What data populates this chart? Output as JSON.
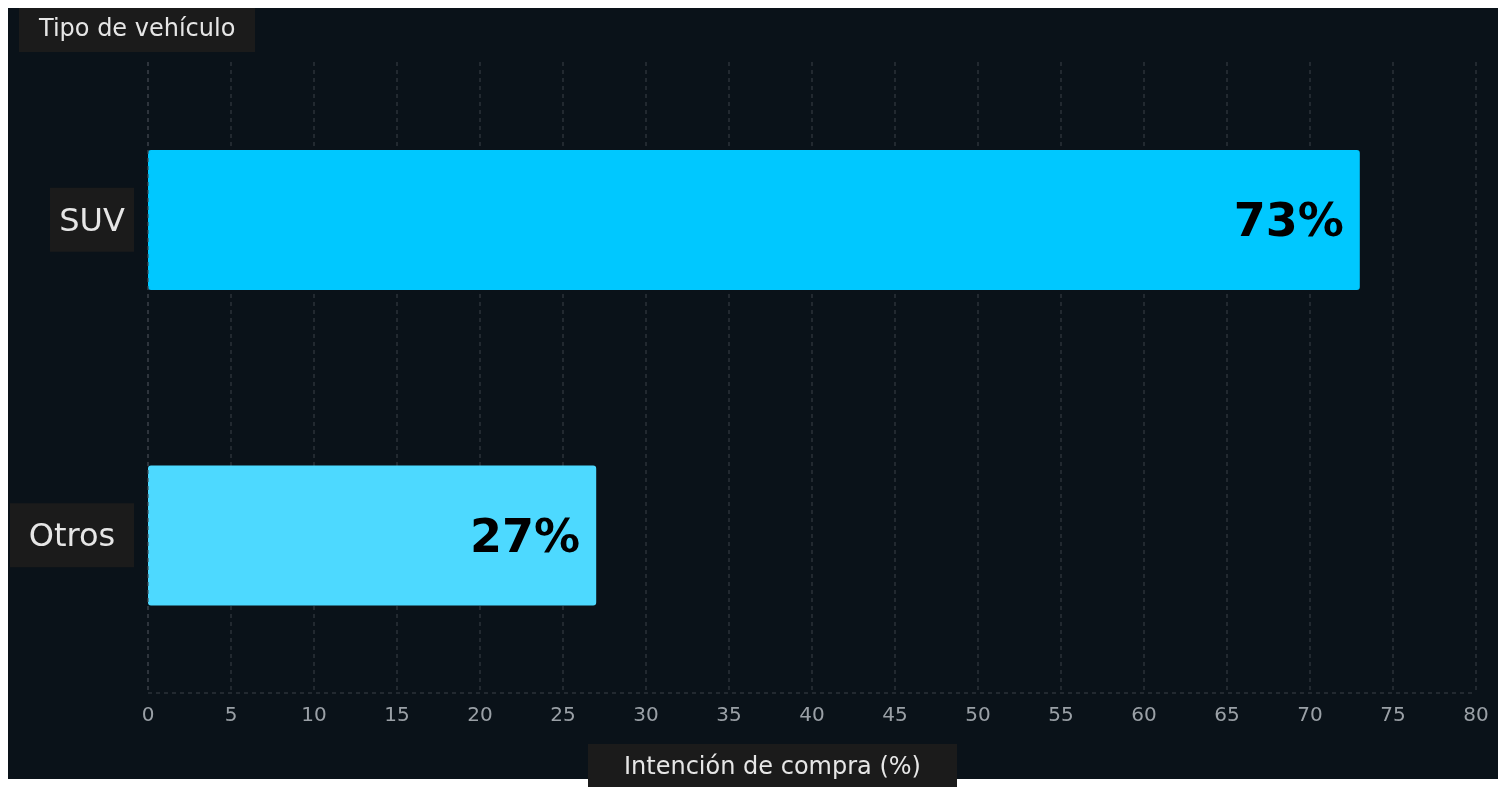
{
  "chart_data": {
    "type": "bar",
    "orientation": "horizontal",
    "ylabel": "Tipo de vehículo",
    "xlabel": "Intención de compra (%)",
    "categories": [
      "SUV",
      "Otros"
    ],
    "values": [
      73,
      27
    ],
    "colors": [
      "#00c8ff",
      "#4dd9ff"
    ],
    "value_labels": [
      "73%",
      "27%"
    ],
    "xlim": [
      0,
      80
    ],
    "xticks": [
      0,
      5,
      10,
      15,
      20,
      25,
      30,
      35,
      40,
      45,
      50,
      55,
      60,
      65,
      70,
      75,
      80
    ],
    "grid": "x"
  }
}
